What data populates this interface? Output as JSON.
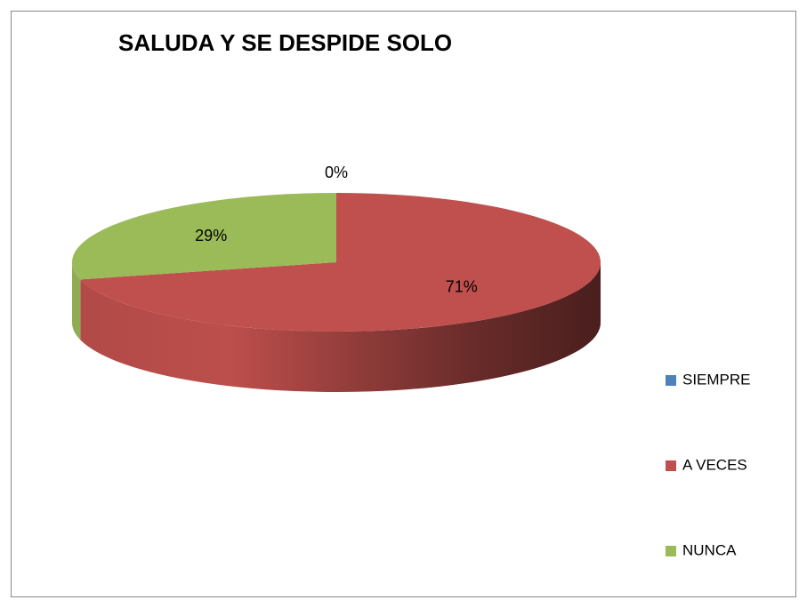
{
  "chart_data": {
    "type": "pie",
    "title": "SALUDA Y SE DESPIDE SOLO",
    "categories": [
      "SIEMPRE",
      "A VECES",
      "NUNCA"
    ],
    "values": [
      0,
      71,
      29
    ],
    "value_labels": [
      "0%",
      "71%",
      "29%"
    ],
    "colors": [
      "#4f81bd",
      "#c0504d",
      "#9bbb59"
    ]
  }
}
